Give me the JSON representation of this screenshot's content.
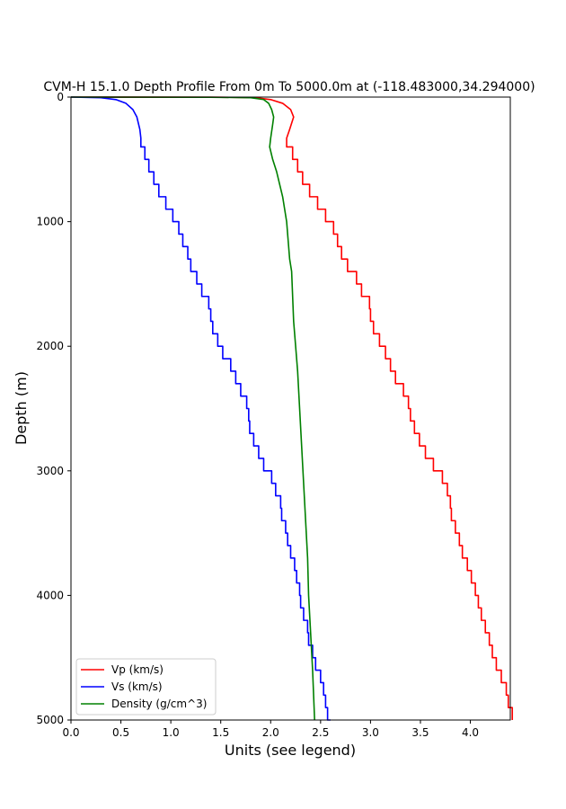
{
  "chart_data": {
    "type": "line",
    "title": "CVM-H 15.1.0 Depth Profile From 0m To 5000.0m at (-118.483000,34.294000)",
    "xlabel": "Units (see legend)",
    "ylabel": "Depth (m)",
    "xlim": [
      0,
      4.4
    ],
    "ylim": [
      5000,
      0
    ],
    "y_inverted": true,
    "grid": false,
    "legend_position": "bottom-left",
    "x_ticks": [
      "0.0",
      "0.5",
      "1.0",
      "1.5",
      "2.0",
      "2.5",
      "3.0",
      "3.5",
      "4.0"
    ],
    "y_ticks": [
      "0",
      "1000",
      "2000",
      "3000",
      "4000",
      "5000"
    ],
    "series": [
      {
        "name": "Vp (km/s)",
        "color": "#ff0000",
        "step": true,
        "points": [
          [
            0.0,
            0
          ],
          [
            1.5,
            1
          ],
          [
            1.85,
            5
          ],
          [
            2.0,
            20
          ],
          [
            2.12,
            50
          ],
          [
            2.2,
            100
          ],
          [
            2.23,
            160
          ],
          [
            2.19,
            260
          ],
          [
            2.16,
            330
          ],
          [
            2.16,
            390
          ],
          [
            2.22,
            400
          ],
          [
            2.27,
            500
          ],
          [
            2.32,
            600
          ],
          [
            2.39,
            700
          ],
          [
            2.47,
            800
          ],
          [
            2.55,
            900
          ],
          [
            2.63,
            1000
          ],
          [
            2.67,
            1100
          ],
          [
            2.71,
            1200
          ],
          [
            2.77,
            1300
          ],
          [
            2.86,
            1400
          ],
          [
            2.91,
            1500
          ],
          [
            2.99,
            1600
          ],
          [
            3.0,
            1700
          ],
          [
            3.03,
            1800
          ],
          [
            3.09,
            1900
          ],
          [
            3.15,
            2000
          ],
          [
            3.2,
            2100
          ],
          [
            3.25,
            2200
          ],
          [
            3.33,
            2300
          ],
          [
            3.38,
            2400
          ],
          [
            3.4,
            2500
          ],
          [
            3.44,
            2600
          ],
          [
            3.49,
            2700
          ],
          [
            3.55,
            2800
          ],
          [
            3.63,
            2900
          ],
          [
            3.72,
            3000
          ],
          [
            3.77,
            3100
          ],
          [
            3.8,
            3200
          ],
          [
            3.81,
            3300
          ],
          [
            3.85,
            3400
          ],
          [
            3.89,
            3500
          ],
          [
            3.92,
            3600
          ],
          [
            3.97,
            3700
          ],
          [
            4.01,
            3800
          ],
          [
            4.05,
            3900
          ],
          [
            4.08,
            4000
          ],
          [
            4.11,
            4100
          ],
          [
            4.15,
            4200
          ],
          [
            4.19,
            4300
          ],
          [
            4.22,
            4400
          ],
          [
            4.26,
            4500
          ],
          [
            4.31,
            4600
          ],
          [
            4.36,
            4700
          ],
          [
            4.38,
            4800
          ],
          [
            4.42,
            4900
          ],
          [
            4.42,
            5000
          ]
        ]
      },
      {
        "name": "Vs (km/s)",
        "color": "#0000ff",
        "step": true,
        "points": [
          [
            0.0,
            0
          ],
          [
            0.3,
            5
          ],
          [
            0.45,
            20
          ],
          [
            0.55,
            50
          ],
          [
            0.62,
            100
          ],
          [
            0.66,
            160
          ],
          [
            0.69,
            260
          ],
          [
            0.7,
            330
          ],
          [
            0.7,
            390
          ],
          [
            0.74,
            400
          ],
          [
            0.78,
            500
          ],
          [
            0.83,
            600
          ],
          [
            0.88,
            700
          ],
          [
            0.95,
            800
          ],
          [
            1.02,
            900
          ],
          [
            1.08,
            1000
          ],
          [
            1.12,
            1100
          ],
          [
            1.17,
            1200
          ],
          [
            1.2,
            1300
          ],
          [
            1.26,
            1400
          ],
          [
            1.31,
            1500
          ],
          [
            1.38,
            1600
          ],
          [
            1.4,
            1700
          ],
          [
            1.42,
            1800
          ],
          [
            1.47,
            1900
          ],
          [
            1.52,
            2000
          ],
          [
            1.6,
            2100
          ],
          [
            1.65,
            2200
          ],
          [
            1.7,
            2300
          ],
          [
            1.76,
            2400
          ],
          [
            1.78,
            2500
          ],
          [
            1.79,
            2600
          ],
          [
            1.83,
            2700
          ],
          [
            1.88,
            2800
          ],
          [
            1.93,
            2900
          ],
          [
            2.01,
            3000
          ],
          [
            2.05,
            3100
          ],
          [
            2.1,
            3200
          ],
          [
            2.11,
            3300
          ],
          [
            2.15,
            3400
          ],
          [
            2.17,
            3500
          ],
          [
            2.2,
            3600
          ],
          [
            2.24,
            3700
          ],
          [
            2.26,
            3800
          ],
          [
            2.29,
            3900
          ],
          [
            2.3,
            4000
          ],
          [
            2.33,
            4100
          ],
          [
            2.37,
            4200
          ],
          [
            2.38,
            4300
          ],
          [
            2.42,
            4400
          ],
          [
            2.45,
            4500
          ],
          [
            2.5,
            4600
          ],
          [
            2.53,
            4700
          ],
          [
            2.55,
            4800
          ],
          [
            2.57,
            4900
          ],
          [
            2.6,
            5000
          ]
        ]
      },
      {
        "name": "Density (g/cm^3)",
        "color": "#008000",
        "step": false,
        "points": [
          [
            0.0,
            0
          ],
          [
            1.4,
            1
          ],
          [
            1.8,
            5
          ],
          [
            1.93,
            20
          ],
          [
            1.98,
            50
          ],
          [
            2.01,
            100
          ],
          [
            2.03,
            160
          ],
          [
            2.02,
            220
          ],
          [
            2.0,
            330
          ],
          [
            1.99,
            400
          ],
          [
            2.02,
            500
          ],
          [
            2.06,
            600
          ],
          [
            2.09,
            700
          ],
          [
            2.12,
            800
          ],
          [
            2.14,
            900
          ],
          [
            2.16,
            1000
          ],
          [
            2.18,
            1200
          ],
          [
            2.19,
            1300
          ],
          [
            2.21,
            1400
          ],
          [
            2.22,
            1600
          ],
          [
            2.23,
            1800
          ],
          [
            2.25,
            2000
          ],
          [
            2.27,
            2200
          ],
          [
            2.29,
            2500
          ],
          [
            2.31,
            2800
          ],
          [
            2.33,
            3100
          ],
          [
            2.35,
            3400
          ],
          [
            2.37,
            3700
          ],
          [
            2.38,
            4000
          ],
          [
            2.4,
            4300
          ],
          [
            2.42,
            4600
          ],
          [
            2.44,
            5000
          ]
        ]
      }
    ]
  }
}
